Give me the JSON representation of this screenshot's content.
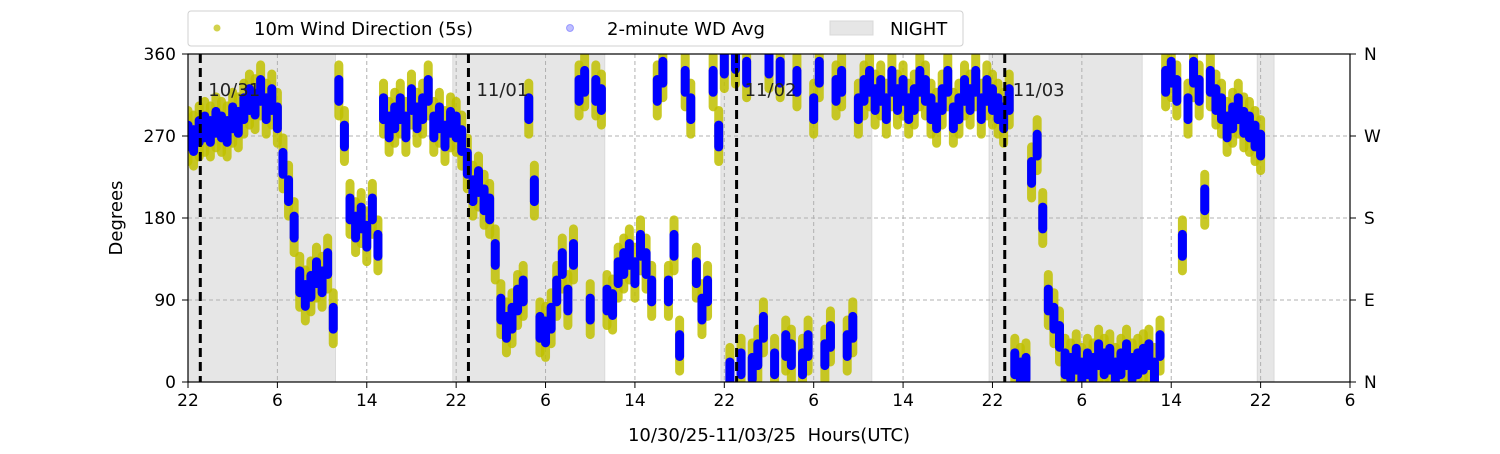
{
  "chart_data": {
    "type": "scatter",
    "title": "",
    "xlabel": "10/30/25-11/03/25  Hours(UTC)",
    "ylabel": "Degrees",
    "x_units": "hours since 10/30 22:00 UTC",
    "xlim": [
      0,
      104
    ],
    "ylim": [
      0,
      360
    ],
    "x_tick_values": [
      0,
      8,
      16,
      24,
      32,
      40,
      48,
      56,
      64,
      72,
      80,
      88,
      96,
      104
    ],
    "x_tick_labels": [
      "22",
      "6",
      "14",
      "22",
      "6",
      "14",
      "22",
      "6",
      "14",
      "22",
      "6",
      "14",
      "22",
      "6"
    ],
    "y_ticks": [
      0,
      90,
      180,
      270,
      360
    ],
    "y_tick_labels": [
      "0",
      "90",
      "180",
      "270",
      "360"
    ],
    "y2_tick_labels": [
      "N",
      "E",
      "S",
      "W",
      "N"
    ],
    "grid": true,
    "legend_position": "top-center-outside",
    "day_markers": [
      {
        "x": 1.1,
        "label": "10/31"
      },
      {
        "x": 25.1,
        "label": "11/01"
      },
      {
        "x": 49.1,
        "label": "11/02"
      },
      {
        "x": 73.1,
        "label": "11/03"
      }
    ],
    "night_periods": [
      [
        0,
        13.2
      ],
      [
        23.7,
        37.3
      ],
      [
        47.7,
        61.2
      ],
      [
        71.7,
        85.4
      ],
      [
        95.7,
        97.2
      ]
    ],
    "night_label": "NIGHT",
    "night_color": "#e6e6e6",
    "x_start": 0,
    "x_step": 0.5,
    "series": [
      {
        "name": "10m Wind Direction (5s)",
        "color": "#bfbf00",
        "spread_deg": 28,
        "values": [
          270,
          265,
          275,
          280,
          275,
          285,
          280,
          275,
          290,
          285,
          300,
          310,
          305,
          320,
          300,
          310,
          290,
          240,
          210,
          170,
          110,
          95,
          105,
          120,
          110,
          130,
          70,
          320,
          270,
          190,
          170,
          180,
          160,
          190,
          150,
          300,
          280,
          290,
          300,
          280,
          310,
          290,
          300,
          320,
          280,
          290,
          270,
          285,
          280,
          265,
          240,
          210,
          220,
          200,
          190,
          140,
          80,
          60,
          70,
          90,
          100,
          300,
          210,
          60,
          55,
          70,
          100,
          130,
          90,
          140,
          320,
          330,
          80,
          320,
          310,
          90,
          85,
          120,
          130,
          140,
          120,
          150,
          130,
          100,
          320,
          340,
          100,
          150,
          40,
          330,
          300,
          120,
          80,
          100,
          330,
          270,
          350,
          10,
          355,
          20,
          340,
          15,
          30,
          60,
          350,
          20,
          340,
          40,
          30,
          330,
          20,
          40,
          300,
          340,
          30,
          50,
          320,
          330,
          40,
          60,
          300,
          320,
          330,
          310,
          320,
          300,
          330,
          310,
          320,
          300,
          310,
          330,
          320,
          300,
          290,
          310,
          330,
          290,
          300,
          320,
          310,
          330,
          300,
          320,
          310,
          300,
          290,
          310,
          20,
          10,
          15,
          230,
          260,
          180,
          90,
          70,
          50,
          20,
          15,
          25,
          10,
          20,
          15,
          30,
          20,
          25,
          10,
          20,
          30,
          15,
          20,
          25,
          30,
          10,
          40,
          330,
          340,
          320,
          150,
          300,
          340,
          320,
          200,
          330,
          310,
          300,
          280,
          290,
          300,
          285,
          280,
          270,
          260
        ]
      },
      {
        "name": "2-minute WD Avg",
        "color": "#0000ff",
        "values": [
          270,
          265,
          275,
          280,
          275,
          285,
          280,
          275,
          290,
          285,
          300,
          310,
          305,
          320,
          300,
          310,
          290,
          240,
          210,
          170,
          110,
          95,
          105,
          120,
          110,
          130,
          70,
          320,
          270,
          190,
          170,
          180,
          160,
          190,
          150,
          300,
          280,
          290,
          300,
          280,
          310,
          290,
          300,
          320,
          280,
          290,
          270,
          285,
          280,
          265,
          240,
          210,
          220,
          200,
          190,
          140,
          80,
          60,
          70,
          90,
          100,
          300,
          210,
          60,
          55,
          70,
          100,
          130,
          90,
          140,
          320,
          330,
          80,
          320,
          310,
          90,
          85,
          120,
          130,
          140,
          120,
          150,
          130,
          100,
          320,
          340,
          100,
          150,
          40,
          330,
          300,
          120,
          80,
          100,
          330,
          270,
          350,
          10,
          355,
          20,
          340,
          15,
          30,
          60,
          350,
          20,
          340,
          40,
          30,
          330,
          20,
          40,
          300,
          340,
          30,
          50,
          320,
          330,
          40,
          60,
          300,
          320,
          330,
          310,
          320,
          300,
          330,
          310,
          320,
          300,
          310,
          330,
          320,
          300,
          290,
          310,
          330,
          290,
          300,
          320,
          310,
          330,
          300,
          320,
          310,
          300,
          290,
          310,
          20,
          10,
          15,
          230,
          260,
          180,
          90,
          70,
          50,
          20,
          15,
          25,
          10,
          20,
          15,
          30,
          20,
          25,
          10,
          20,
          30,
          15,
          20,
          25,
          30,
          10,
          40,
          330,
          340,
          320,
          150,
          300,
          340,
          320,
          200,
          330,
          310,
          300,
          280,
          290,
          300,
          285,
          280,
          270,
          260
        ]
      }
    ]
  }
}
